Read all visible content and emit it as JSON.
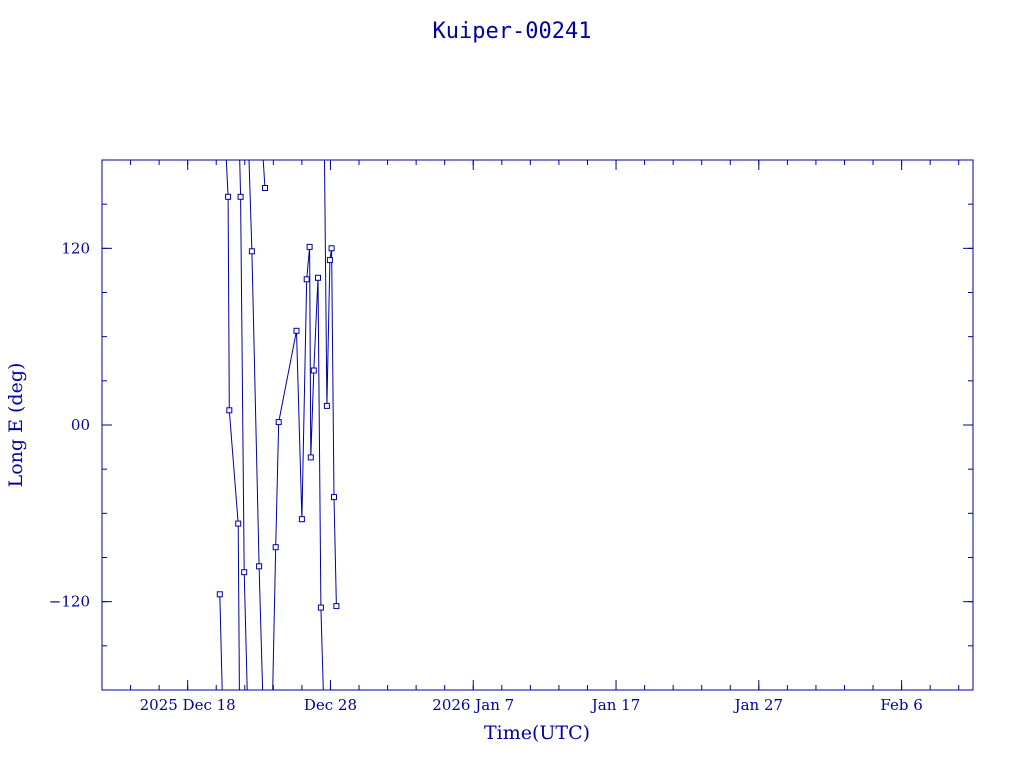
{
  "chart_data": {
    "type": "line",
    "title": "Kuiper-00241",
    "xlabel": "Time(UTC)",
    "ylabel": "Long E (deg)",
    "x_axis": {
      "kind": "date",
      "range": [
        "2025-12-12",
        "2026-02-11"
      ]
    },
    "ylim": [
      -180,
      180
    ],
    "y_ticks": [
      {
        "value": -120,
        "label": "−120"
      },
      {
        "value": 0,
        "label": "00"
      },
      {
        "value": 120,
        "label": "120"
      }
    ],
    "x_ticks": [
      {
        "value": "2025-12-18",
        "label": "2025 Dec 18"
      },
      {
        "value": "2025-12-28",
        "label": "Dec 28"
      },
      {
        "value": "2026-01-07",
        "label": "2026 Jan  7"
      },
      {
        "value": "2026-01-17",
        "label": "Jan 17"
      },
      {
        "value": "2026-01-27",
        "label": "Jan 27"
      },
      {
        "value": "2026-02-06",
        "label": "Feb  6"
      }
    ],
    "grid": false,
    "color": "#0000a0",
    "marker": "square",
    "series": [
      {
        "points": [
          [
            "2025-12-20T06:00",
            -115
          ],
          [
            "2025-12-20T10:00",
            -180
          ],
          [
            "2025-12-20T17:00",
            180
          ],
          [
            "2025-12-20T20:00",
            155
          ],
          [
            "2025-12-20T22:00",
            10
          ],
          [
            "2025-12-21T13:00",
            -67
          ],
          [
            "2025-12-21T15:00",
            -180
          ],
          [
            "2025-12-21T15:30",
            180
          ],
          [
            "2025-12-21T17:00",
            155
          ],
          [
            "2025-12-21T23:00",
            -100
          ],
          [
            "2025-12-22T04:00",
            -180
          ],
          [
            "2025-12-22T07:00",
            180
          ],
          [
            "2025-12-22T12:00",
            118
          ],
          [
            "2025-12-23T00:00",
            -96
          ],
          [
            "2025-12-23T06:00",
            -180
          ],
          [
            "2025-12-23T07:00",
            180
          ],
          [
            "2025-12-23T10:00",
            161
          ],
          [
            "2025-12-23T23:00",
            -180
          ],
          [
            "2025-12-24T04:00",
            -83
          ],
          [
            "2025-12-24T09:00",
            2
          ],
          [
            "2025-12-25T15:00",
            64
          ],
          [
            "2025-12-26T00:00",
            -64
          ],
          [
            "2025-12-26T08:00",
            99
          ],
          [
            "2025-12-26T13:00",
            121
          ],
          [
            "2025-12-26T15:00",
            -22
          ],
          [
            "2025-12-26T20:00",
            37
          ],
          [
            "2025-12-27T03:00",
            100
          ],
          [
            "2025-12-27T08:00",
            -124
          ],
          [
            "2025-12-27T12:00",
            -180
          ],
          [
            "2025-12-27T14:00",
            180
          ],
          [
            "2025-12-27T18:00",
            13
          ],
          [
            "2025-12-27T23:00",
            112
          ],
          [
            "2025-12-28T02:00",
            120
          ],
          [
            "2025-12-28T06:00",
            -49
          ],
          [
            "2025-12-28T10:00",
            -123
          ]
        ]
      }
    ]
  }
}
